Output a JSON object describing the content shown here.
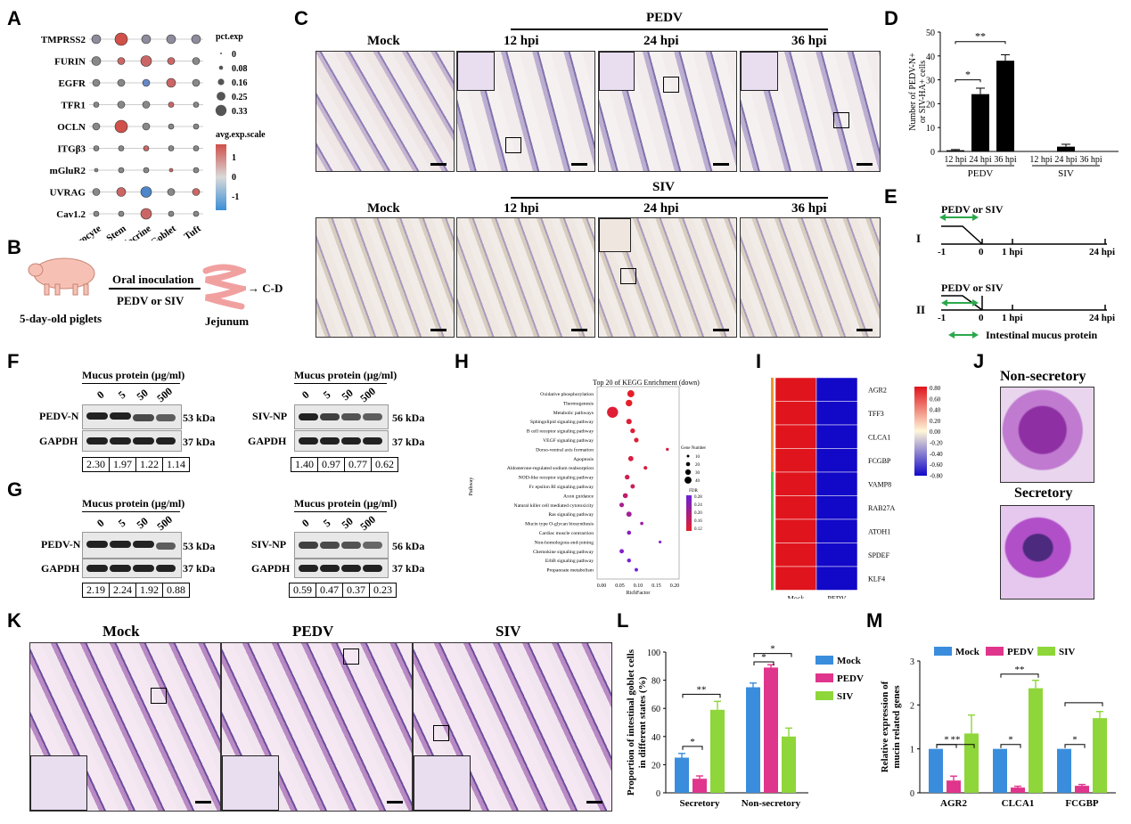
{
  "panels": {
    "A": "A",
    "B": "B",
    "C": "C",
    "D": "D",
    "E": "E",
    "F": "F",
    "G": "G",
    "H": "H",
    "I": "I",
    "J": "J",
    "K": "K",
    "L": "L",
    "M": "M"
  },
  "panelA": {
    "genes": [
      "TMPRSS2",
      "FURIN",
      "EGFR",
      "TFR1",
      "OCLN",
      "ITGβ3",
      "mGluR2",
      "UVRAG",
      "Cav1.2"
    ],
    "celltypes": [
      "Enterocyte",
      "Stem",
      "Endocrine",
      "Goblet",
      "Tuft"
    ],
    "pct_title": "pct.exp",
    "pct_values": [
      "0",
      "0.08",
      "0.16",
      "0.25",
      "0.33"
    ],
    "avg_title": "avg.exp.scale",
    "avg_ticks": [
      "1",
      "0",
      "-1"
    ]
  },
  "panelB": {
    "animal": "5-day-old piglets",
    "route": "Oral inoculation",
    "virus": "PEDV or SIV",
    "tissue": "Jejunum",
    "arrow_target": "→ C-D"
  },
  "panelC": {
    "pedv_title": "PEDV",
    "siv_title": "SIV",
    "columns": [
      "Mock",
      "12 hpi",
      "24 hpi",
      "36 hpi"
    ]
  },
  "panelD": {
    "ylabel_line1": "Number of PEDV-N+",
    "ylabel_line2": "or SIV-HA+ cells",
    "yticks": [
      "0",
      "10",
      "20",
      "30",
      "40",
      "50"
    ],
    "groups": [
      "PEDV",
      "SIV"
    ],
    "sig_short": "*",
    "sig_long": "**"
  },
  "panelE": {
    "row1": "I",
    "row2": "II",
    "virus": "PEDV or SIV",
    "t_m1": "-1",
    "t_0": "0",
    "t_1": "1 hpi",
    "t_24": "24 hpi",
    "mucus": "Intestinal mucus protein"
  },
  "panelF": {
    "left_title": "Mucus protein (μg/ml)",
    "right_title": "Mucus protein (μg/ml)",
    "doses": [
      "0",
      "5",
      "50",
      "500"
    ],
    "left_target": "PEDV-N",
    "left_kda": "53 kDa",
    "right_target": "SIV-NP",
    "right_kda": "56 kDa",
    "loading": "GAPDH",
    "loading_kda": "37 kDa",
    "left_quant": [
      "2.30",
      "1.97",
      "1.22",
      "1.14"
    ],
    "right_quant": [
      "1.40",
      "0.97",
      "0.77",
      "0.62"
    ]
  },
  "panelG": {
    "left_title": "Mucus protein (μg/ml)",
    "right_title": "Mucus protein (μg/ml)",
    "doses": [
      "0",
      "5",
      "50",
      "500"
    ],
    "left_target": "PEDV-N",
    "left_kda": "53 kDa",
    "right_target": "SIV-NP",
    "right_kda": "56 kDa",
    "loading": "GAPDH",
    "loading_kda": "37 kDa",
    "left_quant": [
      "2.19",
      "2.24",
      "1.92",
      "0.88"
    ],
    "right_quant": [
      "0.59",
      "0.47",
      "0.37",
      "0.23"
    ]
  },
  "panelI": {
    "genes": [
      "AGR2",
      "TFF3",
      "CLCA1",
      "FCGBP",
      "VAMP8",
      "RAB27A",
      "ATOH1",
      "SPDEF",
      "KLF4"
    ],
    "cols": [
      "Mock",
      "PEDV"
    ],
    "scale": [
      "0.80",
      "0.60",
      "0.40",
      "0.20",
      "0.00",
      "-0.20",
      "-0.40",
      "-0.60",
      "-0.80"
    ]
  },
  "panelJ": {
    "top": "Non-secretory",
    "bottom": "Secretory"
  },
  "panelK": {
    "cols": [
      "Mock",
      "PEDV",
      "SIV"
    ]
  },
  "chart_data": [
    {
      "panel": "D",
      "type": "bar",
      "categories": [
        "12 hpi",
        "24 hpi",
        "36 hpi",
        "12 hpi",
        "24 hpi",
        "36 hpi"
      ],
      "groups": [
        "PEDV",
        "PEDV",
        "PEDV",
        "SIV",
        "SIV",
        "SIV"
      ],
      "values": [
        0.5,
        24,
        38,
        0,
        2,
        0
      ],
      "errors": [
        0.3,
        2.5,
        2.5,
        0,
        1,
        0
      ],
      "ylim": [
        0,
        50
      ],
      "xlabel": "",
      "ylabel": "Number of PEDV-N+ or SIV-HA+ cells"
    },
    {
      "panel": "H",
      "type": "scatter",
      "title": "Top 20 of KEGG Enrichment (down)",
      "xlabel": "RichFactor",
      "ylabel": "Pathway",
      "xticks": [
        "0.00",
        "0.05",
        "0.10",
        "0.15",
        "0.20"
      ],
      "xlim": [
        0,
        0.2
      ],
      "size_legend_title": "Gene Number",
      "size_legend": [
        "10",
        "20",
        "30",
        "40"
      ],
      "color_legend_title": "FDR",
      "color_legend": [
        "0.28",
        "0.24",
        "0.20",
        "0.16",
        "0.12"
      ],
      "pathways": [
        "Oxidative phosphorylation",
        "Thermogenesis",
        "Metabolic pathways",
        "Sphingolipid signaling pathway",
        "B cell receptor signaling pathway",
        "VEGF signaling pathway",
        "Dorso-ventral axis formation",
        "Apoptosis",
        "Aldosterone-regulated sodium reabsorption",
        "NOD-like receptor signaling pathway",
        "Fc epsilon RI signaling pathway",
        "Axon guidance",
        "Natural killer cell mediated cytotoxicity",
        "Ras signaling pathway",
        "Mucin type O-glycan biosynthesis",
        "Cardiac muscle contraction",
        "Non-homologous end-joining",
        "Chemokine signaling pathway",
        "ErbB signaling pathway",
        "Propanoate metabolism"
      ],
      "x": [
        0.08,
        0.075,
        0.03,
        0.075,
        0.085,
        0.095,
        0.18,
        0.08,
        0.12,
        0.07,
        0.085,
        0.065,
        0.055,
        0.075,
        0.11,
        0.075,
        0.16,
        0.055,
        0.075,
        0.095
      ],
      "gene_number": [
        22,
        20,
        40,
        15,
        12,
        11,
        4,
        14,
        7,
        12,
        10,
        13,
        11,
        14,
        5,
        9,
        3,
        10,
        8,
        6
      ],
      "fdr": [
        0.12,
        0.12,
        0.13,
        0.13,
        0.13,
        0.13,
        0.14,
        0.14,
        0.14,
        0.15,
        0.16,
        0.17,
        0.2,
        0.21,
        0.22,
        0.24,
        0.25,
        0.25,
        0.26,
        0.27
      ]
    },
    {
      "panel": "I",
      "type": "heatmap",
      "rows": [
        "AGR2",
        "TFF3",
        "CLCA1",
        "FCGBP",
        "VAMP8",
        "RAB27A",
        "ATOH1",
        "SPDEF",
        "KLF4"
      ],
      "cols": [
        "Mock",
        "PEDV"
      ],
      "values": [
        [
          0.8,
          -0.8
        ],
        [
          0.8,
          -0.8
        ],
        [
          0.8,
          -0.8
        ],
        [
          0.8,
          -0.8
        ],
        [
          0.8,
          -0.8
        ],
        [
          0.8,
          -0.8
        ],
        [
          0.8,
          -0.8
        ],
        [
          0.8,
          -0.8
        ],
        [
          0.8,
          -0.8
        ]
      ],
      "range": [
        -0.8,
        0.8
      ]
    },
    {
      "panel": "L",
      "type": "bar",
      "categories": [
        "Secretory",
        "Non-secretory"
      ],
      "series": [
        {
          "name": "Mock",
          "values": [
            25,
            75
          ],
          "errors": [
            3,
            3
          ],
          "color": "#3a8ddc"
        },
        {
          "name": "PEDV",
          "values": [
            10,
            89
          ],
          "errors": [
            2,
            2
          ],
          "color": "#e0358c"
        },
        {
          "name": "SIV",
          "values": [
            59,
            40
          ],
          "errors": [
            6,
            6
          ],
          "color": "#8fd63a"
        }
      ],
      "ylim": [
        0,
        100
      ],
      "yticks": [
        "0",
        "20",
        "40",
        "60",
        "80",
        "100"
      ],
      "ylabel": "Proportion of intestinal goblet cells in different states (%)",
      "sig": [
        "*",
        "**",
        "*",
        "*"
      ]
    },
    {
      "panel": "M",
      "type": "bar",
      "categories": [
        "AGR2",
        "CLCA1",
        "FCGBP"
      ],
      "series": [
        {
          "name": "Mock",
          "values": [
            1.0,
            1.0,
            1.0
          ],
          "errors": [
            0,
            0,
            0
          ],
          "color": "#3a8ddc"
        },
        {
          "name": "PEDV",
          "values": [
            0.28,
            0.12,
            0.16
          ],
          "errors": [
            0.1,
            0.03,
            0.03
          ],
          "color": "#e0358c"
        },
        {
          "name": "SIV",
          "values": [
            1.35,
            2.38,
            1.7
          ],
          "errors": [
            0.42,
            0.18,
            0.15
          ],
          "color": "#8fd63a"
        }
      ],
      "ylim": [
        0,
        3
      ],
      "yticks": [
        "0",
        "1",
        "2",
        "3"
      ],
      "ylabel": "Relative expression of mucin related genes",
      "sig": [
        "*",
        "**",
        "*",
        "**",
        "*"
      ]
    }
  ]
}
